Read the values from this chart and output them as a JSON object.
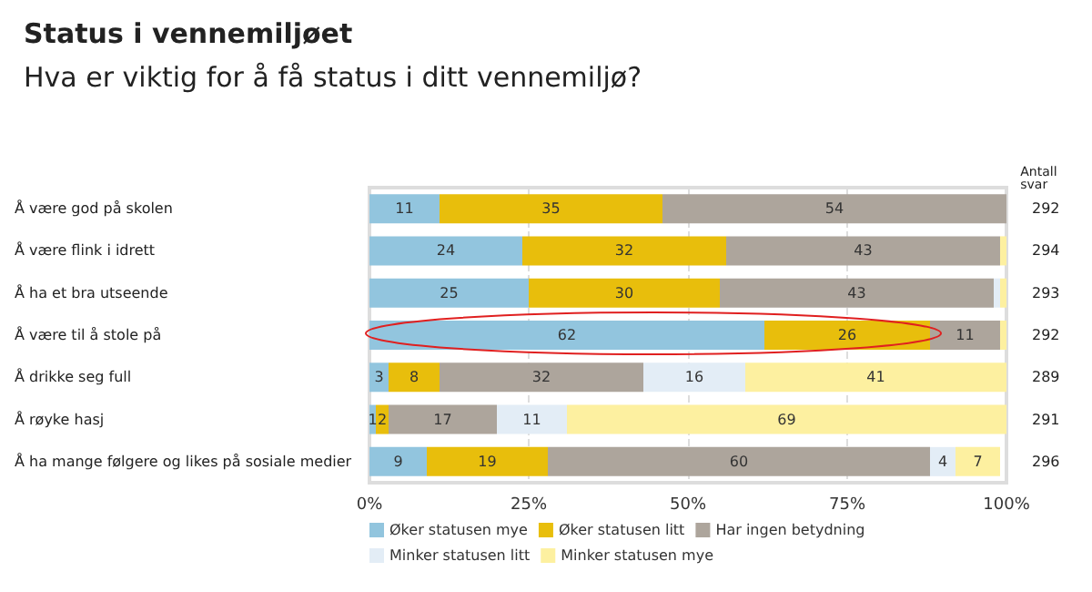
{
  "chart_data": {
    "type": "bar",
    "orientation": "horizontal",
    "stacked": true,
    "title": "Status i vennemiljøet",
    "subtitle": "Hva er viktig for å få status i ditt vennemiljø?",
    "categories": [
      "Å være god på skolen",
      "Å være flink i idrett",
      "Å ha et bra utseende",
      "Å være til å stole på",
      "Å drikke seg full",
      "Å røyke hasj",
      "Å ha mange følgere og likes på sosiale medier"
    ],
    "series": [
      {
        "name": "Øker statusen mye",
        "color": "#92c5de",
        "values": [
          11,
          24,
          25,
          62,
          3,
          1,
          9
        ],
        "value_labels": [
          "11",
          "24",
          "25",
          "62",
          "3",
          "1",
          "9"
        ]
      },
      {
        "name": "Øker statusen litt",
        "color": "#e8be0c",
        "values": [
          35,
          32,
          30,
          26,
          8,
          2,
          19
        ],
        "value_labels": [
          "35",
          "32",
          "30",
          "26",
          "8",
          "2",
          "19"
        ]
      },
      {
        "name": "Har ingen betydning",
        "color": "#ada59c",
        "values": [
          54,
          43,
          43,
          11,
          32,
          17,
          60
        ],
        "value_labels": [
          "54",
          "43",
          "43",
          "11",
          "32",
          "17",
          "60"
        ]
      },
      {
        "name": "Minker statusen litt",
        "color": "#e3edf6",
        "values": [
          null,
          null,
          1,
          null,
          16,
          11,
          4
        ],
        "value_labels": [
          null,
          null,
          null,
          null,
          "16",
          "11",
          "4"
        ]
      },
      {
        "name": "Minker statusen mye",
        "color": "#fdf0a0",
        "values": [
          null,
          1,
          1,
          1,
          41,
          69,
          7
        ],
        "value_labels": [
          null,
          null,
          null,
          null,
          "41",
          "69",
          "7"
        ]
      }
    ],
    "xlim": [
      0,
      100
    ],
    "xticks": [
      {
        "value": 0,
        "label": "0%"
      },
      {
        "value": 25,
        "label": "25%"
      },
      {
        "value": 50,
        "label": "50%"
      },
      {
        "value": 75,
        "label": "75%"
      },
      {
        "value": 100,
        "label": "100%"
      }
    ],
    "grid": "x",
    "legend": "bottom left",
    "annotations": [
      "Antall svar",
      "292",
      "294",
      "293",
      "292",
      "289",
      "291",
      "296"
    ]
  }
}
